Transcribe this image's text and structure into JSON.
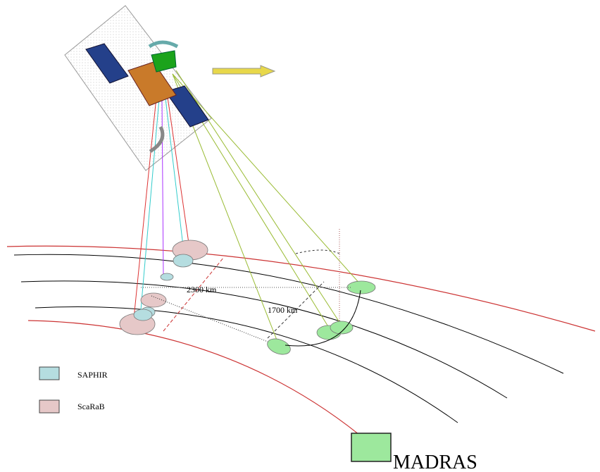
{
  "labels": {
    "swath_scarab": "2300 km",
    "swath_madras": "1700 km"
  },
  "legend": {
    "saphir": "SAPHIR",
    "scarab": "ScaRaB",
    "madras": "MADRAS"
  }
}
